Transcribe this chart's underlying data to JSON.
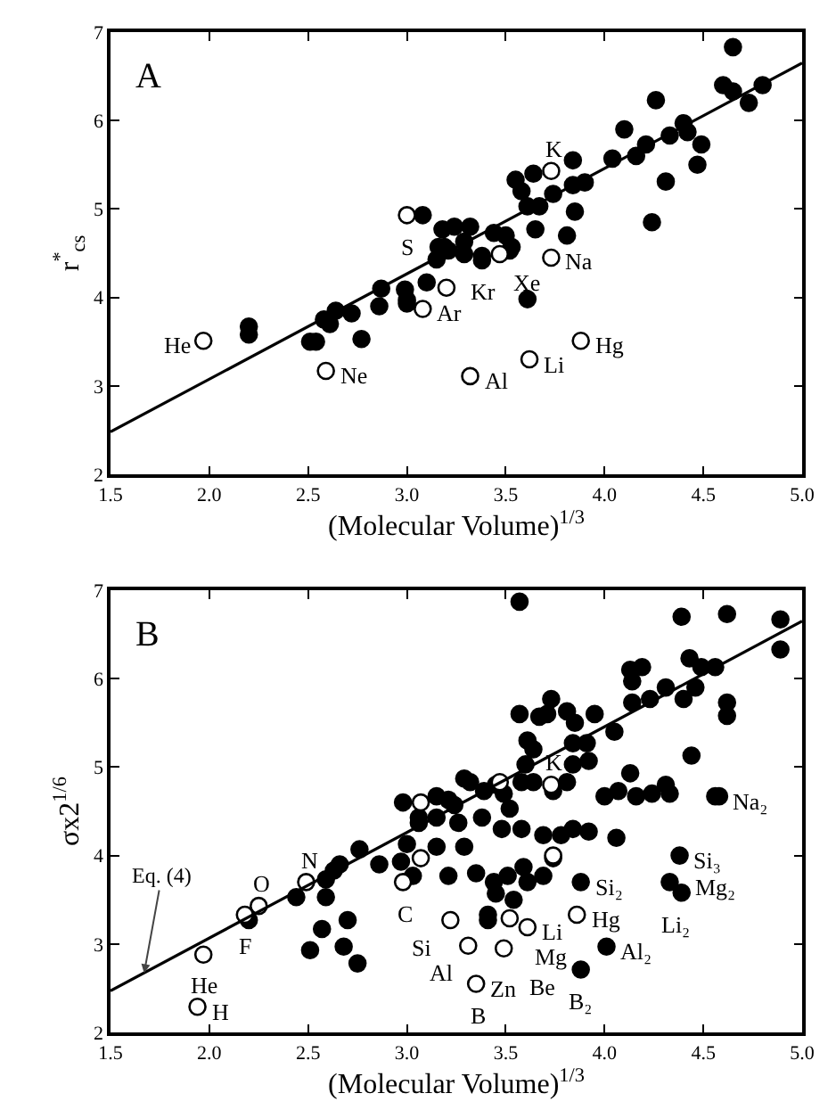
{
  "chart_data": [
    {
      "type": "scatter",
      "ylabel": "r$^{*}$$_{cs}$",
      "xlabel": "(Molecular Volume)$^{1/3}$",
      "xlim": [
        1.5,
        5.0
      ],
      "ylim": [
        2,
        7
      ],
      "xticks": [
        {
          "value": 1.5,
          "label": "1.5"
        },
        {
          "value": 2,
          "label": "2.0"
        },
        {
          "value": 2.5,
          "label": "2.5"
        },
        {
          "value": 3,
          "label": "3.0"
        },
        {
          "value": 3.5,
          "label": "3.5"
        },
        {
          "value": 4,
          "label": "4.0"
        },
        {
          "value": 4.5,
          "label": "4.5"
        },
        {
          "value": 5,
          "label": "5.0"
        }
      ],
      "yticks": [
        2,
        3,
        4,
        5,
        6,
        7
      ],
      "series": [
        {
          "marker": "circle",
          "color": "#000000",
          "x": [
            4.65,
            4.6,
            4.65,
            4.8,
            4.73,
            4.26,
            4.33,
            4.4,
            4.42,
            4.49,
            4.47,
            4.31,
            4.24,
            4.1,
            4.04,
            4.16,
            4.21,
            3.84,
            3.84,
            3.9,
            3.85,
            3.81,
            3.65,
            3.74,
            3.55,
            3.64,
            3.58,
            3.61,
            3.67,
            3.08,
            3.18,
            3.24,
            3.32,
            3.29,
            3.38,
            3.44,
            3.5,
            3.53,
            3.19,
            2.2,
            2.2,
            2.51,
            2.54,
            2.58,
            2.64,
            2.72,
            2.61,
            2.77,
            2.87,
            2.86,
            2.99,
            3.0,
            3.0,
            3.1,
            3.15,
            3.16,
            3.29,
            3.38,
            3.61,
            3.52,
            3.21
          ],
          "values": [
            6.83,
            6.4,
            6.33,
            6.4,
            6.2,
            6.23,
            5.83,
            5.97,
            5.87,
            5.73,
            5.5,
            5.31,
            4.85,
            5.9,
            5.57,
            5.6,
            5.73,
            5.55,
            5.27,
            5.3,
            4.97,
            4.7,
            4.77,
            5.17,
            5.33,
            5.4,
            5.2,
            5.03,
            5.03,
            4.93,
            4.77,
            4.8,
            4.8,
            4.63,
            4.47,
            4.73,
            4.7,
            4.57,
            4.57,
            3.67,
            3.58,
            3.5,
            3.5,
            3.75,
            3.85,
            3.82,
            3.7,
            3.53,
            4.1,
            3.9,
            4.09,
            3.97,
            3.93,
            4.17,
            4.43,
            4.57,
            4.49,
            4.42,
            3.98,
            4.53,
            4.53
          ]
        },
        {
          "marker": "circle",
          "color": "#ffffff",
          "x": [
            3.0,
            3.73,
            1.97,
            2.59,
            3.08,
            3.2,
            3.47,
            3.73,
            3.32,
            3.62,
            3.88
          ],
          "values": [
            4.93,
            5.43,
            3.51,
            3.17,
            3.87,
            4.11,
            4.49,
            4.45,
            3.11,
            3.3,
            3.51
          ]
        },
        {
          "type": "line",
          "marker": "none",
          "color": "#000000",
          "x": [
            1.5,
            5.0
          ],
          "values": [
            2.48,
            6.65
          ]
        }
      ],
      "annotations": [
        "A",
        {
          "text": "S",
          "x": 3.0,
          "y": 4.93
        },
        {
          "text": "K",
          "x": 3.73,
          "y": 5.43
        },
        {
          "text": "He",
          "x": 1.97,
          "y": 3.51
        },
        {
          "text": "Ne",
          "x": 2.59,
          "y": 3.17
        },
        {
          "text": "Ar",
          "x": 3.08,
          "y": 3.87
        },
        {
          "text": "Kr",
          "x": 3.2,
          "y": 4.11
        },
        {
          "text": "Xe",
          "x": 3.47,
          "y": 4.49
        },
        {
          "text": "Na",
          "x": 3.73,
          "y": 4.45
        },
        {
          "text": "Al",
          "x": 3.32,
          "y": 3.11
        },
        {
          "text": "Li",
          "x": 3.62,
          "y": 3.3
        },
        {
          "text": "Hg",
          "x": 3.88,
          "y": 3.51
        }
      ]
    },
    {
      "type": "scatter",
      "ylabel": "σx2$^{1/6}$",
      "xlabel": "(Molecular Volume)$^{1/3}$",
      "xlim": [
        1.5,
        5.0
      ],
      "ylim": [
        2,
        7
      ],
      "xticks": [
        {
          "value": 1.5,
          "label": "1.5"
        },
        {
          "value": 2,
          "label": "2.0"
        },
        {
          "value": 2.5,
          "label": "2.5"
        },
        {
          "value": 3,
          "label": "3.0"
        },
        {
          "value": 3.5,
          "label": "3.5"
        },
        {
          "value": 4,
          "label": "4.0"
        },
        {
          "value": 4.5,
          "label": "4.5"
        },
        {
          "value": 5,
          "label": "5.0"
        }
      ],
      "yticks": [
        2,
        3,
        4,
        5,
        6,
        7
      ],
      "series": [
        {
          "marker": "circle",
          "color": "#000000",
          "x": [
            3.57,
            4.39,
            4.62,
            4.89,
            4.89,
            4.43,
            4.13,
            4.19,
            4.14,
            4.49,
            4.56,
            4.46,
            4.31,
            4.23,
            4.14,
            4.4,
            4.62,
            4.62,
            4.44,
            4.05,
            3.95,
            3.85,
            3.84,
            3.91,
            3.81,
            3.84,
            3.92,
            3.71,
            3.73,
            3.67,
            3.57,
            3.61,
            3.64,
            3.6,
            3.58,
            3.64,
            3.81,
            3.74,
            4.13,
            4.0,
            4.07,
            4.16,
            4.24,
            4.31,
            4.33,
            4.56,
            3.29,
            3.32,
            3.45,
            3.49,
            3.39,
            3.52,
            2.98,
            3.15,
            3.24,
            3.06,
            4.58,
            4.38,
            4.33,
            4.39,
            4.01,
            3.88,
            3.88,
            4.06,
            3.92,
            3.84,
            3.78,
            3.69,
            3.74,
            3.69,
            3.61,
            3.59,
            3.51,
            3.54,
            3.45,
            3.44,
            3.35,
            3.21,
            3.41,
            3.41,
            3.03,
            2.97,
            2.86,
            2.76,
            2.66,
            2.63,
            2.59,
            2.44,
            2.59,
            2.2,
            2.57,
            2.7,
            2.68,
            2.51,
            2.75,
            3.06,
            3.15,
            3.26,
            3.38,
            3.48,
            3.58,
            3.29,
            3.15,
            3.0,
            3.21
          ],
          "values": [
            6.87,
            6.7,
            6.73,
            6.67,
            6.33,
            6.23,
            6.1,
            6.13,
            5.97,
            6.13,
            6.13,
            5.9,
            5.9,
            5.77,
            5.73,
            5.77,
            5.73,
            5.58,
            5.13,
            5.4,
            5.6,
            5.5,
            5.27,
            5.27,
            5.63,
            5.03,
            5.07,
            5.6,
            5.77,
            5.57,
            5.6,
            5.3,
            5.2,
            5.03,
            4.83,
            4.83,
            4.83,
            4.73,
            4.93,
            4.67,
            4.73,
            4.67,
            4.7,
            4.8,
            4.7,
            4.67,
            4.87,
            4.83,
            4.8,
            4.7,
            4.73,
            4.53,
            4.6,
            4.67,
            4.57,
            4.43,
            4.67,
            4.0,
            3.7,
            3.58,
            2.97,
            2.71,
            3.7,
            4.2,
            4.27,
            4.3,
            4.23,
            4.23,
            3.97,
            3.77,
            3.7,
            3.87,
            3.77,
            3.5,
            3.57,
            3.7,
            3.8,
            3.77,
            3.27,
            3.33,
            3.77,
            3.93,
            3.9,
            4.07,
            3.9,
            3.83,
            3.73,
            3.53,
            3.53,
            3.27,
            3.17,
            3.27,
            2.97,
            2.93,
            2.78,
            4.37,
            4.43,
            4.37,
            4.43,
            4.3,
            4.3,
            4.1,
            4.1,
            4.13,
            4.63
          ]
        },
        {
          "marker": "circle",
          "color": "#ffffff",
          "x": [
            3.47,
            3.73,
            3.07,
            2.49,
            2.25,
            2.18,
            1.97,
            1.94,
            2.98,
            3.22,
            3.31,
            3.35,
            3.49,
            3.52,
            3.61,
            3.86,
            3.07,
            3.74
          ],
          "values": [
            4.83,
            4.8,
            4.6,
            3.7,
            3.43,
            3.33,
            2.88,
            2.29,
            3.7,
            3.27,
            2.98,
            2.55,
            2.95,
            3.29,
            3.19,
            3.33,
            3.97,
            4.0
          ]
        },
        {
          "type": "line",
          "marker": "none",
          "color": "#000000",
          "x": [
            1.5,
            5.0
          ],
          "values": [
            2.47,
            6.65
          ]
        }
      ],
      "annotations": [
        "B",
        {
          "text": "Eq. (4)",
          "x": 1.67,
          "y": 2.67
        },
        {
          "text": "K",
          "x": 3.73,
          "y": 4.8
        },
        {
          "text": "Na₂",
          "x": 4.58,
          "y": 4.67
        },
        {
          "text": "Si₃",
          "x": 4.38,
          "y": 4.0
        },
        {
          "text": "Si₂",
          "x": 3.88,
          "y": 3.7
        },
        {
          "text": "Mg₂",
          "x": 4.33,
          "y": 3.7
        },
        {
          "text": "Li₂",
          "x": 4.39,
          "y": 3.58
        },
        {
          "text": "Al₂",
          "x": 4.01,
          "y": 2.97
        },
        {
          "text": "B₂",
          "x": 3.88,
          "y": 2.71
        },
        {
          "text": "N",
          "x": 2.49,
          "y": 3.7
        },
        {
          "text": "O",
          "x": 2.25,
          "y": 3.43
        },
        {
          "text": "F",
          "x": 2.18,
          "y": 3.33
        },
        {
          "text": "He",
          "x": 1.97,
          "y": 2.88
        },
        {
          "text": "H",
          "x": 1.94,
          "y": 2.29
        },
        {
          "text": "C",
          "x": 2.98,
          "y": 3.7
        },
        {
          "text": "Si",
          "x": 3.22,
          "y": 3.27
        },
        {
          "text": "Al",
          "x": 3.31,
          "y": 2.98
        },
        {
          "text": "Zn",
          "x": 3.35,
          "y": 2.55
        },
        {
          "text": "B",
          "x": 3.35,
          "y": 2.55
        },
        {
          "text": "Be",
          "x": 3.49,
          "y": 2.95
        },
        {
          "text": "Mg",
          "x": 3.52,
          "y": 3.29
        },
        {
          "text": "Li",
          "x": 3.61,
          "y": 3.19
        },
        {
          "text": "Hg",
          "x": 3.86,
          "y": 3.33
        }
      ]
    }
  ]
}
